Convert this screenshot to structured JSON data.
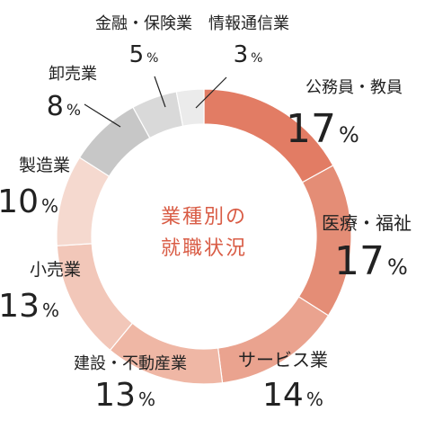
{
  "chart_data": {
    "type": "pie",
    "title": "業種別の就職状況",
    "title_lines": [
      "業種別の",
      "就職状況"
    ],
    "title_color": "#d95c45",
    "text_color": "#222222",
    "slices": [
      {
        "label": "公務員・教員",
        "value": 17,
        "value_text": "17",
        "unit": "%",
        "color": "#e27c64"
      },
      {
        "label": "医療・福祉",
        "value": 17,
        "value_text": "17",
        "unit": "%",
        "color": "#e48d76"
      },
      {
        "label": "サービス業",
        "value": 14,
        "value_text": "14",
        "unit": "%",
        "color": "#eaa38f"
      },
      {
        "label": "建設・不動産業",
        "value": 13,
        "value_text": "13",
        "unit": "%",
        "color": "#efb7a5"
      },
      {
        "label": "小売業",
        "value": 13,
        "value_text": "13",
        "unit": "%",
        "color": "#f2c7b9"
      },
      {
        "label": "製造業",
        "value": 10,
        "value_text": "10",
        "unit": "%",
        "color": "#f5d9cf"
      },
      {
        "label": "卸売業",
        "value": 8,
        "value_text": "8",
        "unit": "%",
        "color": "#c7c7c7"
      },
      {
        "label": "金融・保険業",
        "value": 5,
        "value_text": "5",
        "unit": "%",
        "color": "#d9d9d9"
      },
      {
        "label": "情報通信業",
        "value": 3,
        "value_text": "3",
        "unit": "%",
        "color": "#ebebeb"
      }
    ]
  }
}
